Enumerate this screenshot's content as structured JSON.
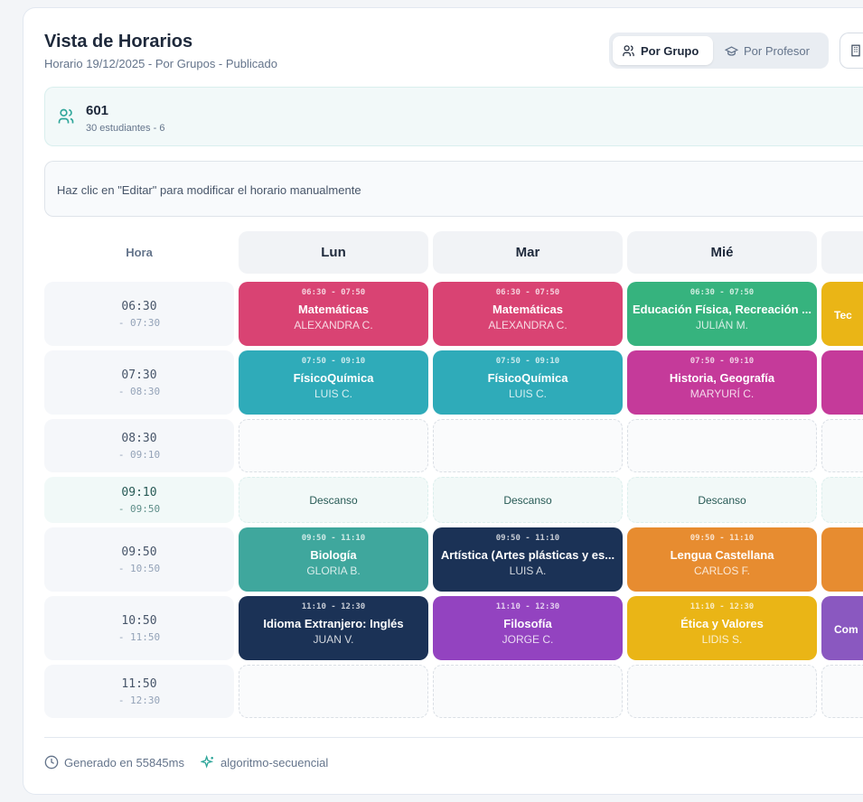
{
  "header": {
    "title": "Vista de Horarios",
    "subtitle": "Horario 19/12/2025 - Por Grupos - Publicado"
  },
  "view_toggle": {
    "by_group": "Por Grupo",
    "by_teacher": "Por Profesor"
  },
  "group": {
    "name": "601",
    "meta": "30 estudiantes - 6"
  },
  "hint": "Haz clic en \"Editar\" para modificar el horario manualmente",
  "grid": {
    "hora_label": "Hora",
    "days": [
      "Lun",
      "Mar",
      "Mié",
      ""
    ],
    "rows": [
      {
        "start": "06:30",
        "end": "- 07:30",
        "type": "class",
        "cells": [
          {
            "time": "06:30 - 07:50",
            "subject": "Matemáticas",
            "teacher": "ALEXANDRA C.",
            "color": "#d94373"
          },
          {
            "time": "06:30 - 07:50",
            "subject": "Matemáticas",
            "teacher": "ALEXANDRA C.",
            "color": "#d94373"
          },
          {
            "time": "06:30 - 07:50",
            "subject": "Educación Física, Recreación ...",
            "teacher": "JULIÁN M.",
            "color": "#36b37e"
          },
          {
            "subject": "Tec",
            "color": "#eab516",
            "partial": true
          }
        ]
      },
      {
        "start": "07:30",
        "end": "- 08:30",
        "type": "class",
        "cells": [
          {
            "time": "07:50 - 09:10",
            "subject": "FísicoQuímica",
            "teacher": "LUIS C.",
            "color": "#2fabb9"
          },
          {
            "time": "07:50 - 09:10",
            "subject": "FísicoQuímica",
            "teacher": "LUIS C.",
            "color": "#2fabb9"
          },
          {
            "time": "07:50 - 09:10",
            "subject": "Historia, Geografía",
            "teacher": "MARYURÍ C.",
            "color": "#c53a9a"
          },
          {
            "subject": "",
            "color": "#c53a9a",
            "partial": true
          }
        ]
      },
      {
        "start": "08:30",
        "end": "- 09:10",
        "type": "empty"
      },
      {
        "start": "09:10",
        "end": "- 09:50",
        "type": "break",
        "label": "Descanso"
      },
      {
        "start": "09:50",
        "end": "- 10:50",
        "type": "class",
        "cells": [
          {
            "time": "09:50 - 11:10",
            "subject": "Biología",
            "teacher": "GLORIA B.",
            "color": "#3fa79d"
          },
          {
            "time": "09:50 - 11:10",
            "subject": "Artística (Artes plásticas y es...",
            "teacher": "LUIS A.",
            "color": "#1b3256"
          },
          {
            "time": "09:50 - 11:10",
            "subject": "Lengua Castellana",
            "teacher": "CARLOS F.",
            "color": "#e78c30"
          },
          {
            "subject": "",
            "color": "#e78c30",
            "partial": true
          }
        ]
      },
      {
        "start": "10:50",
        "end": "- 11:50",
        "type": "class",
        "cells": [
          {
            "time": "11:10 - 12:30",
            "subject": "Idioma Extranjero: Inglés",
            "teacher": "JUAN V.",
            "color": "#1b3256"
          },
          {
            "time": "11:10 - 12:30",
            "subject": "Filosofía",
            "teacher": "JORGE C.",
            "color": "#9343c0"
          },
          {
            "time": "11:10 - 12:30",
            "subject": "Ética y Valores",
            "teacher": "LIDIS S.",
            "color": "#eab516"
          },
          {
            "subject": "Com",
            "color": "#8a58c0",
            "partial": true
          }
        ]
      },
      {
        "start": "11:50",
        "end": "- 12:30",
        "type": "empty"
      }
    ]
  },
  "footer": {
    "generated": "Generado en 55845ms",
    "algorithm": "algoritmo-secuencial"
  },
  "colors": {
    "accent": "#2fa69a"
  }
}
